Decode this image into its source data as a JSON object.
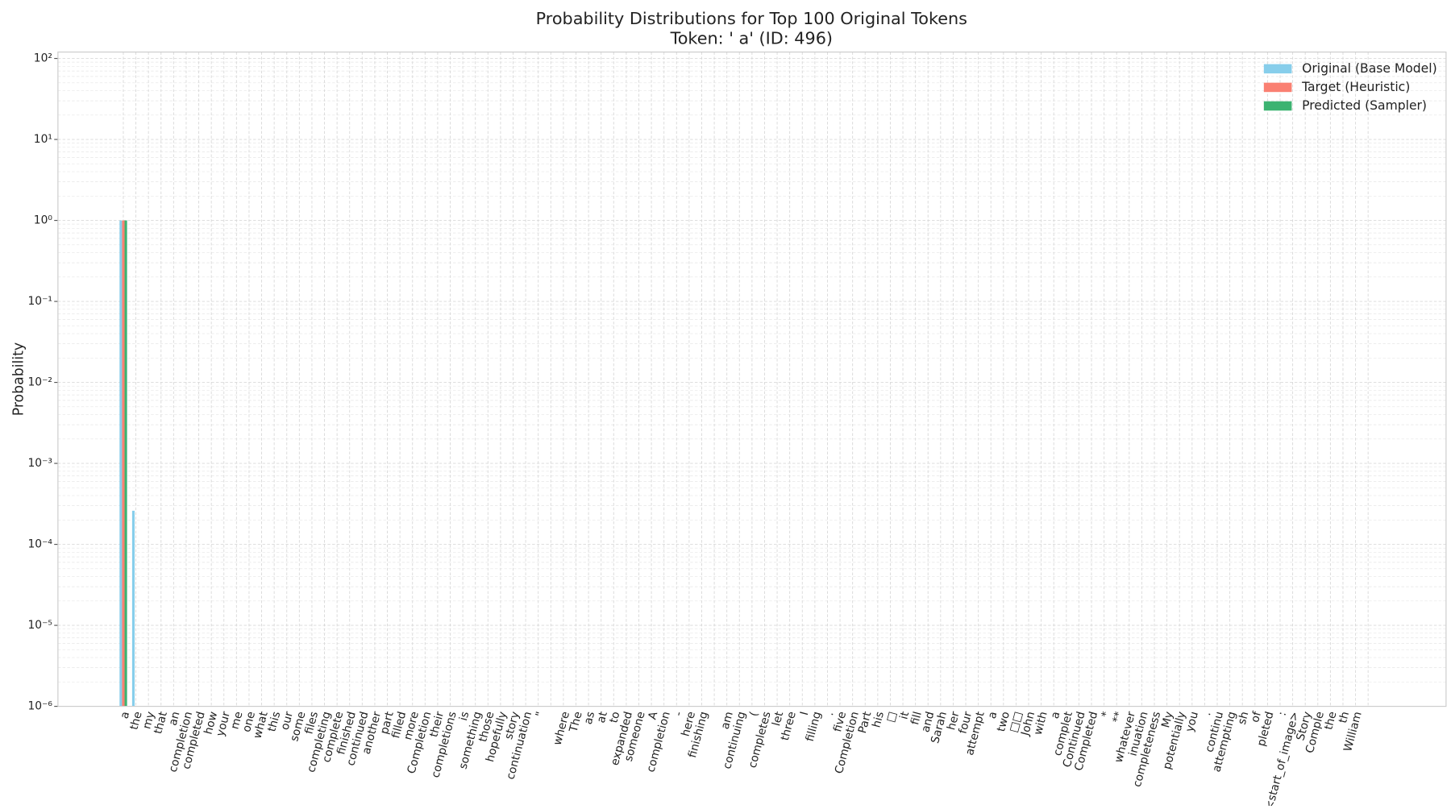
{
  "chart_data": {
    "type": "bar",
    "title": "Probability Distributions for Top 100 Original Tokens",
    "subtitle": "Token: ' a' (ID: 496)",
    "y_label": "Probability",
    "log_y": true,
    "grid": true,
    "legend_position": "upper right",
    "categories": [
      "a",
      "the",
      "my",
      "that",
      "an",
      "completion",
      "completed",
      "how",
      "your",
      "me",
      "one",
      "what",
      "this",
      "our",
      "some",
      "files",
      "completing",
      "complete",
      "finished",
      "continued",
      "another",
      "part",
      "filled",
      "more",
      "Completion",
      "their",
      "completions",
      "is",
      "something",
      "those",
      "hopefully",
      "story",
      "continuation",
      "\"",
      null,
      "where",
      "The",
      "as",
      "at",
      "to",
      "expanded",
      "someone",
      "A",
      "completion",
      "-",
      "here",
      "finishing",
      null,
      "am",
      "continuing",
      "(",
      "completes",
      "let",
      "three",
      "I",
      "filling",
      ".",
      "five",
      "Completion",
      "Part",
      "his",
      "□",
      "it",
      "fill",
      "and",
      "Sarah",
      "her",
      "four",
      "attempt",
      "a",
      "two",
      "□□",
      "John",
      "with",
      "a",
      "complet",
      "Continued",
      "Completed",
      "*",
      "**",
      "whatever",
      "inuation",
      "completeness",
      "My",
      "potentially",
      "you",
      ".",
      "continu",
      "attempting",
      "sh",
      "of",
      "pleted",
      ":",
      "<start_of_image>",
      "Story",
      "Comple",
      "the",
      "th",
      "William",
      null
    ],
    "series": [
      {
        "name": "Original (Base Model)",
        "color": "#87ceeb",
        "values": [
          1.0,
          0.00026,
          null,
          null,
          null,
          null,
          null,
          null,
          null,
          null,
          null,
          null,
          null,
          null,
          null,
          null,
          null,
          null,
          null,
          null,
          null,
          null,
          null,
          null,
          null,
          null,
          null,
          null,
          null,
          null,
          null,
          null,
          null,
          null,
          null,
          null,
          null,
          null,
          null,
          null,
          null,
          null,
          null,
          null,
          null,
          null,
          null,
          null,
          null,
          null,
          null,
          null,
          null,
          null,
          null,
          null,
          null,
          null,
          null,
          null,
          null,
          null,
          null,
          null,
          null,
          null,
          null,
          null,
          null,
          null,
          null,
          null,
          null,
          null,
          null,
          null,
          null,
          null,
          null,
          null,
          null,
          null,
          null,
          null,
          null,
          null,
          null,
          null,
          null,
          null,
          null,
          null,
          null,
          null,
          null,
          null,
          null,
          null,
          null,
          null
        ]
      },
      {
        "name": "Target (Heuristic)",
        "color": "#fa8072",
        "values": [
          1.0,
          null,
          null,
          null,
          null,
          null,
          null,
          null,
          null,
          null,
          null,
          null,
          null,
          null,
          null,
          null,
          null,
          null,
          null,
          null,
          null,
          null,
          null,
          null,
          null,
          null,
          null,
          null,
          null,
          null,
          null,
          null,
          null,
          null,
          null,
          null,
          null,
          null,
          null,
          null,
          null,
          null,
          null,
          null,
          null,
          null,
          null,
          null,
          null,
          null,
          null,
          null,
          null,
          null,
          null,
          null,
          null,
          null,
          null,
          null,
          null,
          null,
          null,
          null,
          null,
          null,
          null,
          null,
          null,
          null,
          null,
          null,
          null,
          null,
          null,
          null,
          null,
          null,
          null,
          null,
          null,
          null,
          null,
          null,
          null,
          null,
          null,
          null,
          null,
          null,
          null,
          null,
          null,
          null,
          null,
          null,
          null,
          null,
          null,
          null
        ]
      },
      {
        "name": "Predicted (Sampler)",
        "color": "#3cb371",
        "values": [
          1.0,
          null,
          null,
          null,
          null,
          null,
          null,
          null,
          null,
          null,
          null,
          null,
          null,
          null,
          null,
          null,
          null,
          null,
          null,
          null,
          null,
          null,
          null,
          null,
          null,
          null,
          null,
          null,
          null,
          null,
          null,
          null,
          null,
          null,
          null,
          null,
          null,
          null,
          null,
          null,
          null,
          null,
          null,
          null,
          null,
          null,
          null,
          null,
          null,
          null,
          null,
          null,
          null,
          null,
          null,
          null,
          null,
          null,
          null,
          null,
          null,
          null,
          null,
          null,
          null,
          null,
          null,
          null,
          null,
          null,
          null,
          null,
          null,
          null,
          null,
          null,
          null,
          null,
          null,
          null,
          null,
          null,
          null,
          null,
          null,
          null,
          null,
          null,
          null,
          null,
          null,
          null,
          null,
          null,
          null,
          null,
          null,
          null,
          null,
          null
        ]
      }
    ],
    "ylim": [
      1e-06,
      120
    ],
    "yticks": [
      {
        "value": 1e-06,
        "label": "10⁻⁶"
      },
      {
        "value": 1e-05,
        "label": "10⁻⁵"
      },
      {
        "value": 0.0001,
        "label": "10⁻⁴"
      },
      {
        "value": 0.001,
        "label": "10⁻³"
      },
      {
        "value": 0.01,
        "label": "10⁻²"
      },
      {
        "value": 0.1,
        "label": "10⁻¹"
      },
      {
        "value": 1,
        "label": "10⁰"
      },
      {
        "value": 10,
        "label": "10¹"
      },
      {
        "value": 100,
        "label": "10²"
      }
    ]
  }
}
